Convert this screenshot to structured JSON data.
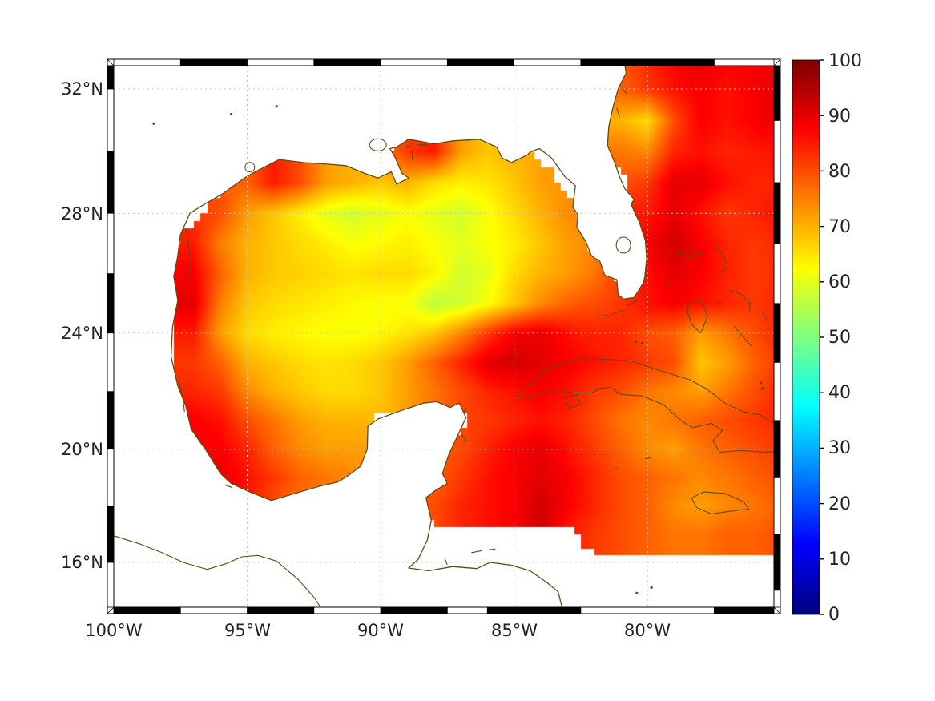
{
  "figure": {
    "background": "#ffffff",
    "axes": {
      "x_tick_labels": [
        "100°W",
        "95°W",
        "90°W",
        "85°W",
        "80°W"
      ],
      "y_tick_labels": [
        "32°N",
        "28°N",
        "24°N",
        "20°N",
        "16°N"
      ],
      "grid_color": "#c3c3c3",
      "coastline_color": "#5c4d12",
      "land_color": "#ffffff",
      "frame_colors": [
        "#000000",
        "#ffffff"
      ],
      "label_color": "#222222"
    },
    "colorbar": {
      "orientation": "vertical",
      "min": 0,
      "max": 100,
      "colormap": "jet",
      "tick_labels": [
        "0",
        "10",
        "20",
        "30",
        "40",
        "50",
        "60",
        "70",
        "80",
        "90",
        "100"
      ]
    }
  },
  "chart_data": {
    "type": "heatmap",
    "title": "",
    "projection": "mercator",
    "lon_range": [
      -100,
      -75.26
    ],
    "lat_range": [
      14.4,
      32.72
    ],
    "x_tick_lons": [
      -100,
      -95,
      -90,
      -85,
      -80
    ],
    "y_tick_lats": [
      32,
      28,
      24,
      20,
      16
    ],
    "colorbar_ticks": [
      0,
      10,
      20,
      30,
      40,
      50,
      60,
      70,
      80,
      90,
      100
    ],
    "vmin": 0,
    "vmax": 100,
    "colormap": "jet",
    "grid_lons": [
      -100,
      -99,
      -98,
      -97,
      -96,
      -95,
      -94,
      -93,
      -92,
      -91,
      -90,
      -89,
      -88,
      -87,
      -86,
      -85,
      -84,
      -83,
      -82,
      -81,
      -80,
      -79,
      -78,
      -77,
      -76,
      -75
    ],
    "grid_lats": [
      33,
      32,
      31,
      30,
      29,
      28,
      27,
      26,
      25,
      24,
      23,
      22,
      21,
      20,
      19,
      18,
      17,
      16,
      15,
      14
    ],
    "values": [
      [
        null,
        null,
        null,
        null,
        null,
        null,
        null,
        null,
        null,
        null,
        null,
        null,
        null,
        null,
        null,
        null,
        null,
        null,
        null,
        78,
        84,
        88,
        90,
        88,
        88,
        90
      ],
      [
        null,
        null,
        null,
        null,
        null,
        null,
        null,
        null,
        null,
        null,
        null,
        null,
        null,
        null,
        null,
        null,
        null,
        null,
        null,
        78,
        82,
        86,
        88,
        86,
        88,
        90
      ],
      [
        null,
        null,
        null,
        null,
        null,
        null,
        null,
        null,
        null,
        null,
        null,
        null,
        null,
        null,
        null,
        null,
        null,
        null,
        null,
        70,
        66,
        80,
        88,
        86,
        88,
        90
      ],
      [
        null,
        null,
        null,
        null,
        null,
        null,
        null,
        null,
        null,
        null,
        null,
        82,
        85,
        72,
        68,
        70,
        null,
        null,
        null,
        76,
        74,
        84,
        86,
        84,
        85,
        86
      ],
      [
        null,
        null,
        null,
        null,
        null,
        78,
        85,
        80,
        72,
        70,
        68,
        70,
        66,
        64,
        65,
        68,
        72,
        null,
        null,
        null,
        82,
        90,
        90,
        86,
        84,
        84
      ],
      [
        null,
        null,
        null,
        null,
        80,
        72,
        68,
        64,
        60,
        58,
        60,
        62,
        60,
        58,
        62,
        66,
        70,
        74,
        null,
        null,
        85,
        90,
        86,
        82,
        84,
        86
      ],
      [
        null,
        null,
        null,
        85,
        75,
        70,
        68,
        66,
        64,
        62,
        63,
        64,
        62,
        60,
        62,
        64,
        68,
        72,
        null,
        null,
        88,
        92,
        88,
        84,
        82,
        84
      ],
      [
        null,
        null,
        null,
        88,
        78,
        70,
        68,
        67,
        66,
        65,
        66,
        66,
        64,
        58,
        60,
        66,
        70,
        72,
        76,
        null,
        86,
        90,
        88,
        84,
        82,
        83
      ],
      [
        null,
        null,
        null,
        90,
        75,
        68,
        66,
        65,
        64,
        63,
        62,
        62,
        56,
        58,
        62,
        68,
        74,
        78,
        80,
        82,
        86,
        88,
        86,
        84,
        82,
        84
      ],
      [
        null,
        null,
        null,
        85,
        72,
        66,
        64,
        63,
        62,
        62,
        63,
        65,
        68,
        74,
        82,
        88,
        90,
        86,
        84,
        84,
        80,
        78,
        72,
        76,
        80,
        84
      ],
      [
        null,
        null,
        null,
        82,
        78,
        70,
        68,
        66,
        65,
        66,
        68,
        72,
        78,
        84,
        90,
        92,
        90,
        88,
        86,
        84,
        82,
        80,
        68,
        72,
        78,
        82
      ],
      [
        null,
        null,
        null,
        84,
        82,
        74,
        70,
        68,
        66,
        66,
        68,
        72,
        76,
        80,
        84,
        86,
        88,
        86,
        82,
        80,
        76,
        74,
        72,
        76,
        80,
        84
      ],
      [
        null,
        null,
        null,
        88,
        86,
        80,
        76,
        72,
        70,
        70,
        null,
        null,
        null,
        null,
        82,
        84,
        86,
        84,
        80,
        76,
        74,
        76,
        78,
        80,
        82,
        84
      ],
      [
        null,
        null,
        null,
        88,
        88,
        84,
        78,
        74,
        72,
        72,
        null,
        null,
        null,
        80,
        84,
        88,
        90,
        86,
        82,
        78,
        74,
        72,
        76,
        78,
        80,
        82
      ],
      [
        null,
        null,
        null,
        null,
        90,
        86,
        82,
        78,
        76,
        74,
        null,
        null,
        78,
        82,
        86,
        88,
        90,
        88,
        84,
        80,
        78,
        76,
        74,
        76,
        78,
        80
      ],
      [
        null,
        null,
        null,
        null,
        null,
        85,
        80,
        76,
        74,
        null,
        null,
        null,
        80,
        84,
        86,
        88,
        92,
        88,
        84,
        80,
        78,
        74,
        72,
        74,
        76,
        78
      ],
      [
        null,
        null,
        null,
        null,
        null,
        null,
        null,
        null,
        null,
        null,
        null,
        null,
        null,
        null,
        null,
        null,
        null,
        null,
        82,
        80,
        78,
        76,
        76,
        78,
        78,
        80
      ],
      [
        null,
        null,
        null,
        null,
        null,
        null,
        null,
        null,
        null,
        null,
        null,
        null,
        null,
        null,
        null,
        null,
        null,
        null,
        null,
        null,
        null,
        null,
        null,
        null,
        null,
        null
      ],
      [
        null,
        null,
        null,
        null,
        null,
        null,
        null,
        null,
        null,
        null,
        null,
        null,
        null,
        null,
        null,
        null,
        null,
        null,
        null,
        null,
        null,
        null,
        null,
        null,
        null,
        null
      ],
      [
        null,
        null,
        null,
        null,
        null,
        null,
        null,
        null,
        null,
        null,
        null,
        null,
        null,
        null,
        null,
        null,
        null,
        null,
        null,
        null,
        null,
        null,
        null,
        null,
        null,
        null
      ]
    ]
  }
}
